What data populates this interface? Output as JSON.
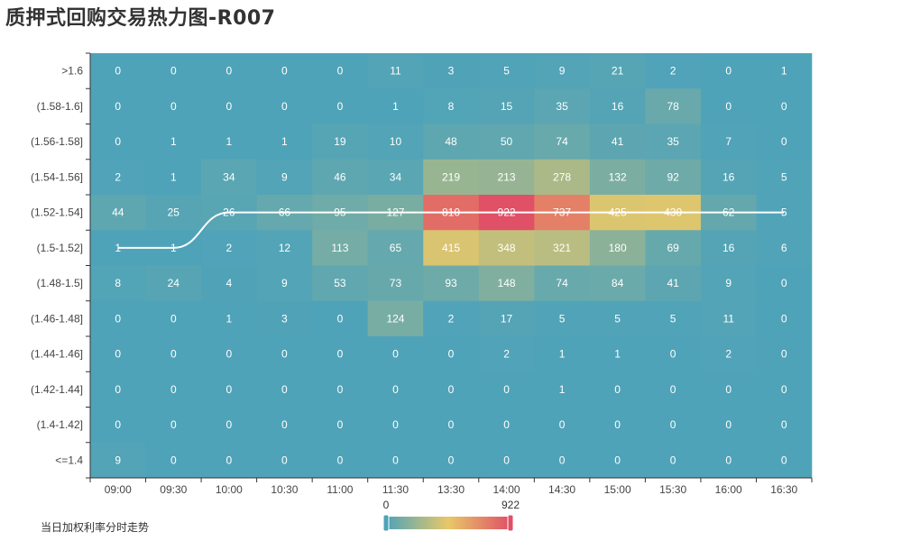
{
  "chart_data": {
    "type": "heatmap",
    "title": "质押式回购交易热力图-R007",
    "x": [
      "09:00",
      "09:30",
      "10:00",
      "10:30",
      "11:00",
      "11:30",
      "13:30",
      "14:00",
      "14:30",
      "15:00",
      "15:30",
      "16:00",
      "16:30"
    ],
    "y": [
      ">1.6",
      "(1.58-1.6]",
      "(1.56-1.58]",
      "(1.54-1.56]",
      "(1.52-1.54]",
      "(1.5-1.52]",
      "(1.48-1.5]",
      "(1.46-1.48]",
      "(1.44-1.46]",
      "(1.42-1.44]",
      "(1.4-1.42]",
      "<=1.4"
    ],
    "values": [
      [
        0,
        0,
        0,
        0,
        0,
        11,
        3,
        5,
        9,
        21,
        2,
        0,
        1
      ],
      [
        0,
        0,
        0,
        0,
        0,
        1,
        8,
        15,
        35,
        16,
        78,
        0,
        0
      ],
      [
        0,
        1,
        1,
        1,
        19,
        10,
        48,
        50,
        74,
        41,
        35,
        7,
        0
      ],
      [
        2,
        1,
        34,
        9,
        46,
        34,
        219,
        213,
        278,
        132,
        92,
        16,
        5
      ],
      [
        44,
        25,
        26,
        66,
        95,
        127,
        810,
        922,
        737,
        425,
        430,
        62,
        5
      ],
      [
        1,
        1,
        2,
        12,
        113,
        65,
        415,
        348,
        321,
        180,
        69,
        16,
        6
      ],
      [
        8,
        24,
        4,
        9,
        53,
        73,
        93,
        148,
        74,
        84,
        41,
        9,
        0
      ],
      [
        0,
        0,
        1,
        3,
        0,
        124,
        2,
        17,
        5,
        5,
        5,
        11,
        0
      ],
      [
        0,
        0,
        0,
        0,
        0,
        0,
        0,
        2,
        1,
        1,
        0,
        2,
        0
      ],
      [
        0,
        0,
        0,
        0,
        0,
        0,
        0,
        0,
        1,
        0,
        0,
        0,
        0
      ],
      [
        0,
        0,
        0,
        0,
        0,
        0,
        0,
        0,
        0,
        0,
        0,
        0,
        0
      ],
      [
        9,
        0,
        0,
        0,
        0,
        0,
        0,
        0,
        0,
        0,
        0,
        0,
        0
      ]
    ],
    "visual_map": {
      "min": 0,
      "max": 922,
      "min_label": "0",
      "max_label": "922",
      "colors": [
        "#4fa3b8",
        "#e8c869",
        "#e05066"
      ]
    },
    "line_series": {
      "name": "当日加权利率分时走势",
      "color": "#ffffff",
      "y_category_index": [
        5,
        5,
        4,
        4,
        4,
        4,
        4,
        4,
        4,
        4,
        4,
        4,
        4
      ]
    }
  }
}
